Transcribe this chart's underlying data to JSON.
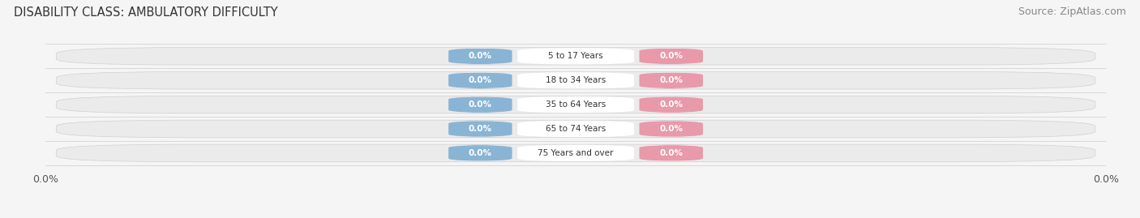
{
  "title": "DISABILITY CLASS: AMBULATORY DIFFICULTY",
  "source": "Source: ZipAtlas.com",
  "categories": [
    "5 to 17 Years",
    "18 to 34 Years",
    "35 to 64 Years",
    "65 to 74 Years",
    "75 Years and over"
  ],
  "male_values": [
    0.0,
    0.0,
    0.0,
    0.0,
    0.0
  ],
  "female_values": [
    0.0,
    0.0,
    0.0,
    0.0,
    0.0
  ],
  "male_color": "#8ab4d4",
  "female_color": "#e899aa",
  "bar_bg_color": "#ebebeb",
  "bar_bg_edge_color": "#d0d0d0",
  "label_bg_male": "#8ab4d4",
  "label_bg_female": "#e899aa",
  "label_text_color": "#ffffff",
  "category_text_color": "#333333",
  "bar_height": 0.72,
  "bar_gap": 0.28,
  "title_fontsize": 10.5,
  "source_fontsize": 9,
  "tick_fontsize": 9,
  "legend_fontsize": 9,
  "axis_label_left": "0.0%",
  "axis_label_right": "0.0%",
  "background_color": "#f5f5f5",
  "row_bg_color": "#f5f5f5",
  "row_alt_color": "#ebebeb"
}
